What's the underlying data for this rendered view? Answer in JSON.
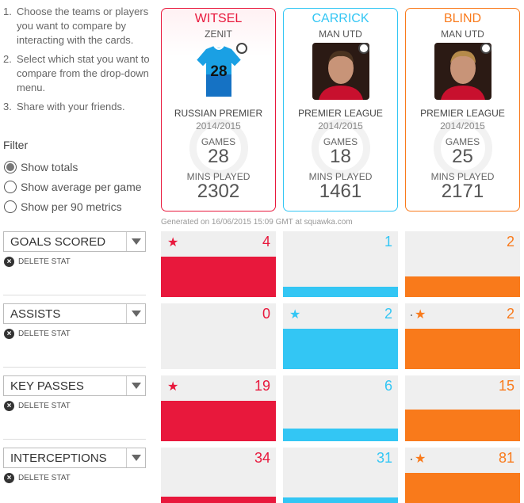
{
  "instructions": [
    {
      "num": "1.",
      "text": "Choose the teams or players you want to compare by interacting with the cards."
    },
    {
      "num": "2.",
      "text": "Select which stat you want to compare from the drop-down menu."
    },
    {
      "num": "3.",
      "text": "Share with your friends."
    }
  ],
  "filter": {
    "title": "Filter",
    "options": [
      {
        "label": "Show totals",
        "checked": true
      },
      {
        "label": "Show average per game",
        "checked": false
      },
      {
        "label": "Show per 90 metrics",
        "checked": false
      }
    ]
  },
  "players": [
    {
      "name": "WITSEL",
      "club": "ZENIT",
      "photo": "jersey-28",
      "jersey_number": "28",
      "league": "RUSSIAN PREMIER",
      "season": "2014/2015",
      "games_label": "GAMES",
      "games": "28",
      "mins_label": "MINS PLAYED",
      "mins": "2302",
      "color": "#e8183c"
    },
    {
      "name": "CARRICK",
      "club": "MAN UTD",
      "photo": "player-photo",
      "league": "PREMIER LEAGUE",
      "season": "2014/2015",
      "games_label": "GAMES",
      "games": "18",
      "mins_label": "MINS PLAYED",
      "mins": "1461",
      "color": "#33c6f4"
    },
    {
      "name": "BLIND",
      "club": "MAN UTD",
      "photo": "player-photo",
      "league": "PREMIER LEAGUE",
      "season": "2014/2015",
      "games_label": "GAMES",
      "games": "25",
      "mins_label": "MINS PLAYED",
      "mins": "2171",
      "color": "#f97a1b"
    }
  ],
  "generated": "Generated on 16/06/2015 15:09 GMT at squawka.com",
  "delete_label": "DELETE STAT",
  "stats": [
    {
      "label": "GOALS SCORED",
      "max": 4,
      "values": [
        4,
        1,
        2
      ],
      "stars": [
        true,
        false,
        false
      ]
    },
    {
      "label": "ASSISTS",
      "max": 2,
      "values": [
        0,
        2,
        2
      ],
      "stars": [
        false,
        true,
        true
      ]
    },
    {
      "label": "KEY PASSES",
      "max": 19,
      "values": [
        19,
        6,
        15
      ],
      "stars": [
        true,
        false,
        false
      ]
    },
    {
      "label": "INTERCEPTIONS",
      "max": 81,
      "values": [
        34,
        31,
        81
      ],
      "stars": [
        false,
        false,
        true
      ]
    }
  ]
}
